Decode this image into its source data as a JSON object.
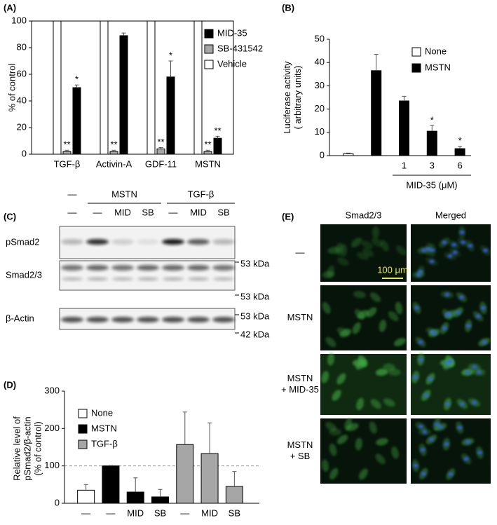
{
  "chart_data": [
    {
      "type": "bar",
      "panel": "(A)",
      "ylabel": [
        "% of control"
      ],
      "categories": [
        "TGF-β",
        "Activin-A",
        "GDF-11",
        "MSTN"
      ],
      "series": [
        {
          "name": "MID-35",
          "color": "#000000",
          "values": [
            50,
            89,
            58,
            12
          ],
          "errors": [
            2,
            2,
            12,
            1.5
          ],
          "significance": [
            "*",
            null,
            "*",
            "**"
          ]
        },
        {
          "name": "SB-431542",
          "color": "#a6a6a6",
          "values": [
            2,
            2,
            4,
            2
          ],
          "errors": [
            1,
            1,
            1,
            1
          ],
          "significance": [
            "**",
            "**",
            "**",
            "**"
          ]
        },
        {
          "name": "Vehicle",
          "color": "#ffffff",
          "values": [
            100,
            100,
            100,
            100
          ]
        }
      ],
      "ylim": [
        0,
        100
      ],
      "yticks": [
        0,
        20,
        40,
        60,
        80,
        100
      ]
    },
    {
      "type": "bar",
      "panel": "(B)",
      "ylabel": [
        "Luciferase activity",
        "( arbitrary units)"
      ],
      "xlabel": "MID-35 (μM)",
      "categories": [
        null,
        null,
        "1",
        "3",
        "6"
      ],
      "series": [
        {
          "name": "None",
          "color": "#ffffff",
          "values": [
            0.8,
            null,
            null,
            null,
            null
          ],
          "errors": [
            0.3,
            null,
            null,
            null,
            null
          ]
        },
        {
          "name": "MSTN",
          "color": "#000000",
          "values": [
            null,
            36.5,
            23.5,
            10.5,
            3
          ],
          "errors": [
            null,
            7,
            2,
            2.5,
            1
          ],
          "significance": [
            null,
            null,
            null,
            "*",
            "*"
          ]
        }
      ],
      "ylim": [
        0,
        50
      ],
      "yticks": [
        0,
        10,
        20,
        30,
        40,
        50
      ]
    },
    {
      "type": "bar",
      "panel": "(D)",
      "ylabel": [
        "Relative level of",
        "pSmad2/β-actin",
        "(% of control)"
      ],
      "categories": [
        "—",
        "—",
        "MID",
        "SB",
        "—",
        "MID",
        "SB"
      ],
      "series": [
        {
          "name": "None",
          "color": "#ffffff",
          "values": [
            35,
            null,
            null,
            null,
            null,
            null,
            null
          ],
          "errors": [
            15,
            null,
            null,
            null,
            null,
            null,
            null
          ]
        },
        {
          "name": "MSTN",
          "color": "#000000",
          "values": [
            null,
            100,
            30,
            17,
            null,
            null,
            null
          ],
          "errors": [
            null,
            1,
            38,
            20,
            null,
            null,
            null
          ]
        },
        {
          "name": "TGF-β",
          "color": "#a6a6a6",
          "values": [
            null,
            null,
            null,
            null,
            157,
            133,
            45
          ],
          "errors": [
            null,
            null,
            null,
            null,
            87,
            82,
            40
          ]
        }
      ],
      "reference_line": 100,
      "ylim": [
        0,
        300
      ],
      "yticks": [
        0,
        100,
        200,
        300
      ]
    }
  ],
  "blot": {
    "panel": "(C)",
    "treatment_header": [
      "—",
      "MSTN",
      "TGF-β"
    ],
    "lane_labels": [
      "—",
      "—",
      "MID",
      "SB",
      "—",
      "MID",
      "SB"
    ],
    "rows": [
      {
        "label": "pSmad2",
        "markers": [
          "53 kDa"
        ]
      },
      {
        "label": "Smad2/3",
        "markers": [
          "53 kDa"
        ]
      },
      {
        "label": "β-Actin",
        "markers": [
          "53 kDa",
          "42 kDa"
        ]
      }
    ]
  },
  "microscopy": {
    "panel": "(E)",
    "columns": [
      "Smad2/3",
      "Merged"
    ],
    "rows": [
      [
        "—"
      ],
      [
        "MSTN"
      ],
      [
        "MSTN",
        "+ MID-35"
      ],
      [
        "MSTN",
        "+ SB"
      ]
    ],
    "scale_bar": "100 μm"
  }
}
